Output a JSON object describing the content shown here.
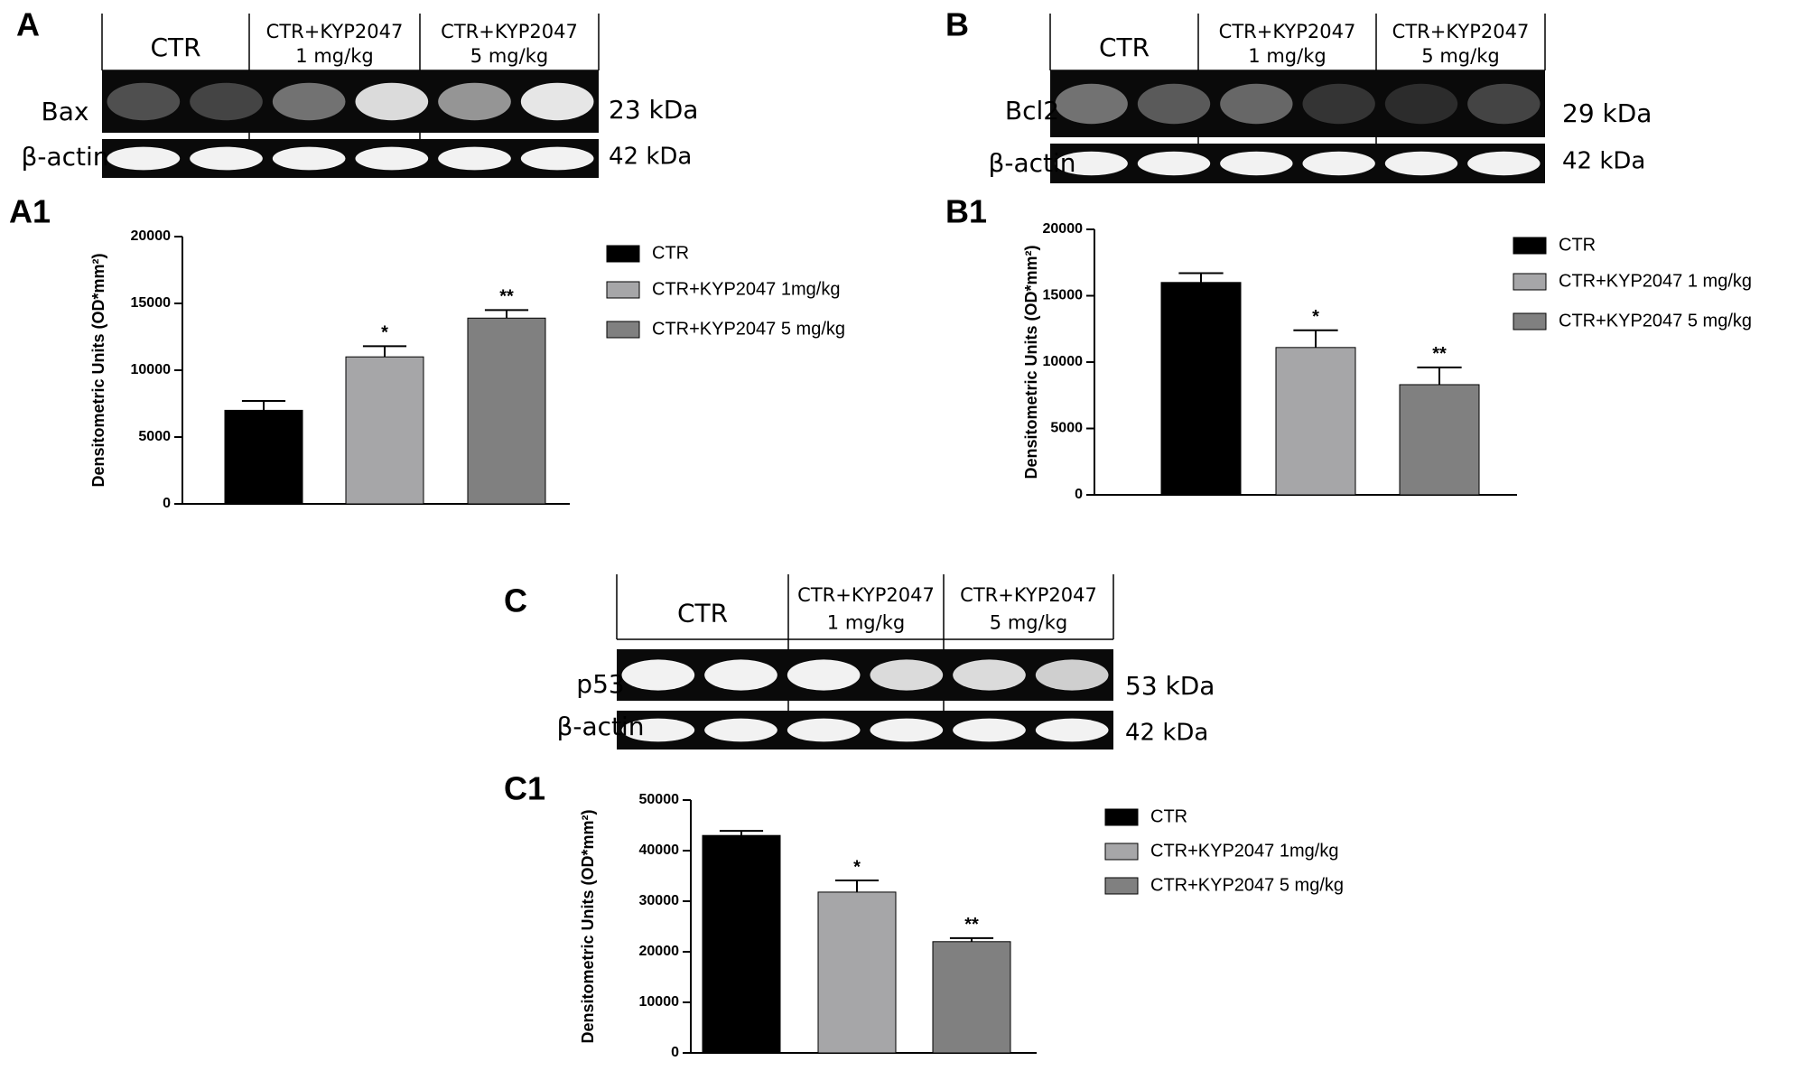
{
  "colors": {
    "ctr": "#000000",
    "kyp1": "#a6a6a8",
    "kyp5": "#808080",
    "blot_bg": "#0a0a0a",
    "band": "#f2f2f2"
  },
  "blots": [
    {
      "panel": "A",
      "groups": [
        {
          "l1": "CTR",
          "l2": ""
        },
        {
          "l1": "CTR+KYP2047",
          "l2": "1 mg/kg"
        },
        {
          "l1": "CTR+KYP2047",
          "l2": "5 mg/kg"
        }
      ],
      "protein": "Bax",
      "protein_kda": "23 kDa",
      "control": "β-actin",
      "control_kda": "42 kDa",
      "protein_band_levels": [
        0.3,
        0.25,
        0.45,
        0.9,
        0.6,
        0.95
      ],
      "control_band_levels": [
        1,
        1,
        1,
        1,
        1,
        1
      ]
    },
    {
      "panel": "B",
      "groups": [
        {
          "l1": "CTR",
          "l2": ""
        },
        {
          "l1": "CTR+KYP2047",
          "l2": "1 mg/kg"
        },
        {
          "l1": "CTR+KYP2047",
          "l2": "5 mg/kg"
        }
      ],
      "protein": "Bcl2",
      "protein_kda": "29 kDa",
      "control": "β-actin",
      "control_kda": "42 kDa",
      "protein_band_levels": [
        0.45,
        0.35,
        0.4,
        0.18,
        0.15,
        0.25
      ],
      "control_band_levels": [
        1,
        1,
        1,
        1,
        1,
        1
      ]
    },
    {
      "panel": "C",
      "groups": [
        {
          "l1": "CTR",
          "l2": ""
        },
        {
          "l1": "CTR+KYP2047",
          "l2": "1 mg/kg"
        },
        {
          "l1": "CTR+KYP2047",
          "l2": "5 mg/kg"
        }
      ],
      "protein": "p53",
      "protein_kda": "53 kDa",
      "control": "β-actin",
      "control_kda": "42 kDa",
      "protein_band_levels": [
        1,
        1,
        1,
        0.9,
        0.9,
        0.85
      ],
      "control_band_levels": [
        1,
        1,
        1,
        1,
        1,
        1
      ]
    }
  ],
  "chart_data": [
    {
      "panel": "A1",
      "type": "bar",
      "ylabel": "Densitometric Units (OD*mm²)",
      "ylim": [
        0,
        20000
      ],
      "yticks": [
        0,
        5000,
        10000,
        15000,
        20000
      ],
      "categories": [
        "CTR",
        "CTR+KYP2047 1mg/kg",
        "CTR+KYP2047 5 mg/kg"
      ],
      "values": [
        7000,
        11000,
        13900
      ],
      "errors": [
        700,
        800,
        600
      ],
      "significance": [
        "",
        "*",
        "**"
      ],
      "legend": [
        "CTR",
        "CTR+KYP2047 1mg/kg",
        "CTR+KYP2047 5 mg/kg"
      ]
    },
    {
      "panel": "B1",
      "type": "bar",
      "ylabel": "Densitometric Units (OD*mm²)",
      "ylim": [
        0,
        20000
      ],
      "yticks": [
        0,
        5000,
        10000,
        15000,
        20000
      ],
      "categories": [
        "CTR",
        "CTR+KYP2047  1 mg/kg",
        "CTR+KYP2047 5 mg/kg"
      ],
      "values": [
        16000,
        11100,
        8300
      ],
      "errors": [
        700,
        1300,
        1300
      ],
      "significance": [
        "",
        "*",
        "**"
      ],
      "legend": [
        "CTR",
        "CTR+KYP2047  1 mg/kg",
        "CTR+KYP2047 5 mg/kg"
      ]
    },
    {
      "panel": "C1",
      "type": "bar",
      "ylabel": "Densitometric Units (OD*mm²)",
      "ylim": [
        0,
        50000
      ],
      "yticks": [
        0,
        10000,
        20000,
        30000,
        40000,
        50000
      ],
      "categories": [
        "CTR",
        "CTR+KYP2047 1mg/kg",
        "CTR+KYP2047 5 mg/kg"
      ],
      "values": [
        43000,
        31800,
        22000
      ],
      "errors": [
        900,
        2300,
        700
      ],
      "significance": [
        "",
        "*",
        "**"
      ],
      "legend": [
        "CTR",
        "CTR+KYP2047 1mg/kg",
        "CTR+KYP2047 5 mg/kg"
      ]
    }
  ]
}
